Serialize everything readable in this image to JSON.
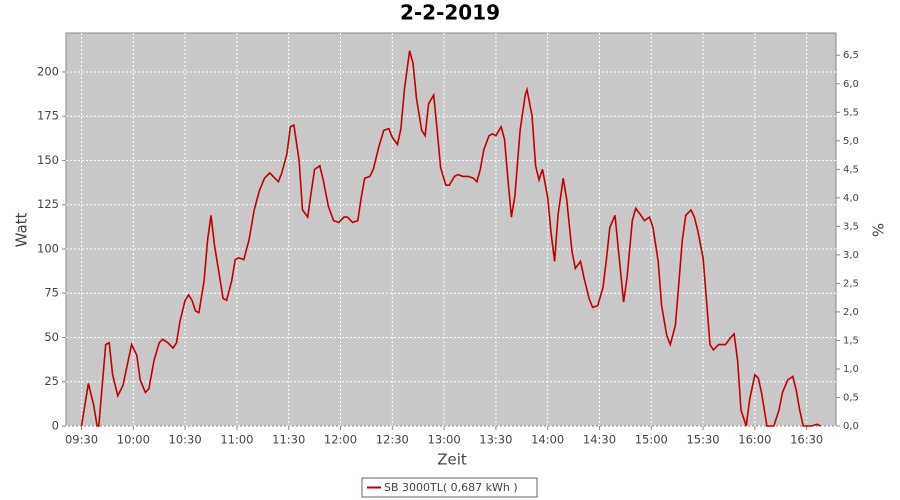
{
  "chart_data": {
    "type": "line",
    "title": "2-2-2019",
    "x_label": "Zeit",
    "y_label": "Watt",
    "y2_label": "%",
    "x": [
      "09:30",
      "09:34",
      "09:37",
      "09:39",
      "09:40",
      "09:44",
      "09:46",
      "09:48",
      "09:51",
      "09:54",
      "09:57",
      "09:59",
      "10:02",
      "10:04",
      "10:07",
      "10:09",
      "10:12",
      "10:15",
      "10:17",
      "10:20",
      "10:23",
      "10:25",
      "10:27",
      "10:30",
      "10:32",
      "10:34",
      "10:36",
      "10:38",
      "10:41",
      "10:43",
      "10:45",
      "10:47",
      "10:50",
      "10:52",
      "10:54",
      "10:57",
      "10:59",
      "11:01",
      "11:04",
      "11:07",
      "11:10",
      "11:13",
      "11:16",
      "11:19",
      "11:22",
      "11:24",
      "11:26",
      "11:29",
      "11:31",
      "11:33",
      "11:36",
      "11:38",
      "11:41",
      "11:43",
      "11:45",
      "11:48",
      "11:50",
      "11:53",
      "11:56",
      "11:59",
      "12:02",
      "12:04",
      "12:07",
      "12:10",
      "12:12",
      "12:14",
      "12:17",
      "12:19",
      "12:22",
      "12:25",
      "12:28",
      "12:30",
      "12:33",
      "12:35",
      "12:37",
      "12:40",
      "12:42",
      "12:44",
      "12:47",
      "12:49",
      "12:51",
      "12:54",
      "12:56",
      "12:58",
      "13:01",
      "13:03",
      "13:06",
      "13:08",
      "13:11",
      "13:14",
      "13:17",
      "13:19",
      "13:21",
      "13:23",
      "13:26",
      "13:28",
      "13:30",
      "13:33",
      "13:35",
      "13:37",
      "13:39",
      "13:41",
      "13:44",
      "13:47",
      "13:48",
      "13:51",
      "13:53",
      "13:55",
      "13:57",
      "14:00",
      "14:02",
      "14:04",
      "14:06",
      "14:09",
      "14:11",
      "14:14",
      "14:16",
      "14:19",
      "14:21",
      "14:24",
      "14:26",
      "14:29",
      "14:32",
      "14:34",
      "14:36",
      "14:39",
      "14:41",
      "14:44",
      "14:46",
      "14:49",
      "14:51",
      "14:54",
      "14:56",
      "14:59",
      "15:01",
      "15:04",
      "15:06",
      "15:09",
      "15:11",
      "15:14",
      "15:16",
      "15:18",
      "15:20",
      "15:23",
      "15:25",
      "15:27",
      "15:30",
      "15:32",
      "15:34",
      "15:36",
      "15:39",
      "15:41",
      "15:43",
      "15:46",
      "15:48",
      "15:50",
      "15:52",
      "15:55",
      "15:57",
      "16:00",
      "16:02",
      "16:04",
      "16:07",
      "16:11",
      "16:14",
      "16:16",
      "16:19",
      "16:22",
      "16:24",
      "16:26",
      "16:28",
      "16:33",
      "16:36",
      "16:38"
    ],
    "series": [
      {
        "name": "SB 3000TL( 0,687 kWh )",
        "color": "#c00000",
        "values": [
          0,
          24,
          12,
          0,
          0,
          46,
          47,
          29,
          17,
          23,
          37,
          46,
          40,
          26,
          19,
          21,
          37,
          47,
          49,
          47,
          44,
          47,
          59,
          71,
          74,
          71,
          65,
          64,
          82,
          105,
          119,
          102,
          84,
          72,
          71,
          82,
          94,
          95,
          94,
          105,
          122,
          133,
          140,
          143,
          140,
          138,
          143,
          154,
          169,
          170,
          150,
          122,
          118,
          132,
          145,
          147,
          139,
          124,
          116,
          115,
          118,
          118,
          115,
          116,
          129,
          140,
          141,
          145,
          157,
          167,
          168,
          163,
          159,
          168,
          190,
          212,
          205,
          185,
          167,
          164,
          182,
          187,
          167,
          146,
          136,
          136,
          141,
          142,
          141,
          141,
          140,
          138,
          145,
          156,
          164,
          165,
          164,
          169,
          162,
          139,
          118,
          130,
          167,
          187,
          190,
          175,
          147,
          139,
          145,
          129,
          109,
          93,
          119,
          140,
          128,
          99,
          89,
          93,
          84,
          72,
          67,
          68,
          78,
          94,
          112,
          119,
          99,
          70,
          84,
          116,
          123,
          119,
          116,
          118,
          112,
          93,
          68,
          51,
          46,
          57,
          81,
          105,
          119,
          122,
          118,
          110,
          95,
          71,
          46,
          43,
          46,
          46,
          46,
          50,
          52,
          37,
          9,
          0,
          15,
          29,
          27,
          18,
          0,
          0,
          9,
          19,
          26,
          28,
          20,
          9,
          0,
          0,
          1,
          0
        ]
      }
    ],
    "xlim": [
      "09:21",
      "16:47"
    ],
    "xticks": [
      "09:30",
      "10:00",
      "10:30",
      "11:00",
      "11:30",
      "12:00",
      "12:30",
      "13:00",
      "13:30",
      "14:00",
      "14:30",
      "15:00",
      "15:30",
      "16:00",
      "16:30"
    ],
    "ylim": [
      0,
      222
    ],
    "yticks": [
      0,
      25,
      50,
      75,
      100,
      125,
      150,
      175,
      200
    ],
    "y2lim": [
      0,
      6.89
    ],
    "y2ticks": [
      {
        "value": 0,
        "label": "0,0"
      },
      {
        "value": 0.5,
        "label": "0,5"
      },
      {
        "value": 1,
        "label": "1,0"
      },
      {
        "value": 1.5,
        "label": "1,5"
      },
      {
        "value": 2,
        "label": "2,0"
      },
      {
        "value": 2.5,
        "label": "2,5"
      },
      {
        "value": 3,
        "label": "3,0"
      },
      {
        "value": 3.5,
        "label": "3,5"
      },
      {
        "value": 4,
        "label": "4,0"
      },
      {
        "value": 4.5,
        "label": "4,5"
      },
      {
        "value": 5,
        "label": "5,0"
      },
      {
        "value": 5.5,
        "label": "5,5"
      },
      {
        "value": 6,
        "label": "6,0"
      },
      {
        "value": 6.5,
        "label": "6,5"
      }
    ],
    "grid": true,
    "plot_background": "#c8c8c8",
    "legend": "bottom"
  }
}
